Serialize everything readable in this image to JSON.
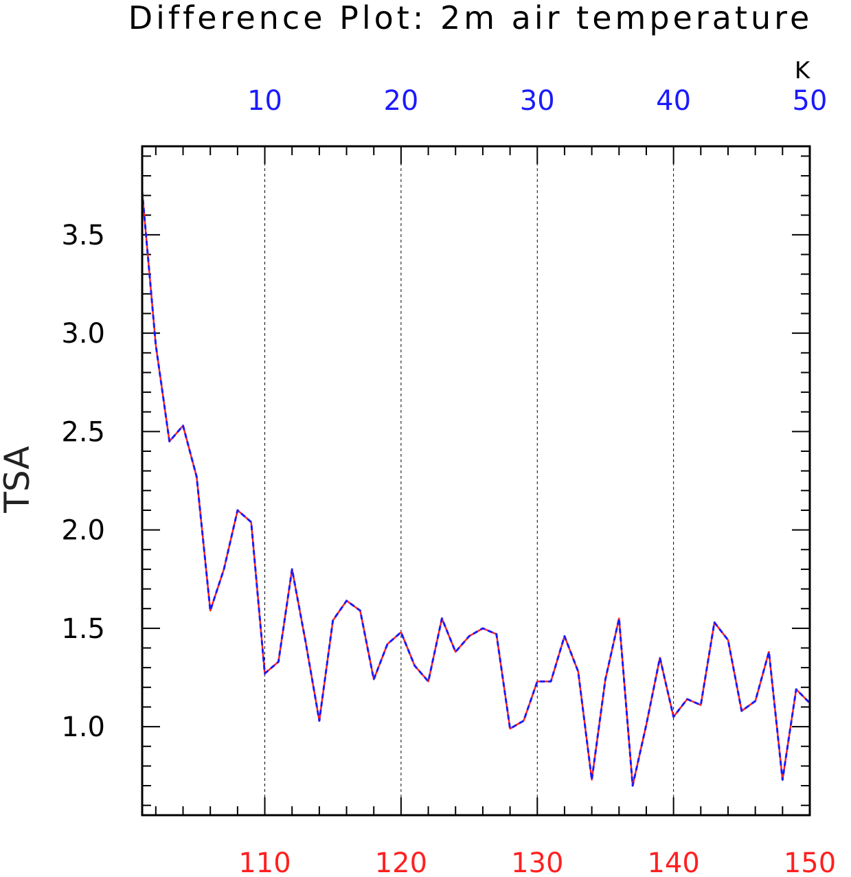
{
  "chart_data": {
    "type": "line",
    "title": "Difference Plot: 2m air temperature",
    "ylabel": "TSA",
    "units": "K",
    "ylim": [
      0.55,
      3.95
    ],
    "yticks": [
      "1.0",
      "1.5",
      "2.0",
      "2.5",
      "3.0",
      "3.5"
    ],
    "x_bottom": {
      "range": [
        101,
        150
      ],
      "ticks": [
        "110",
        "120",
        "130",
        "140",
        "150"
      ],
      "color": "#ff2020"
    },
    "x_top": {
      "range": [
        1,
        50
      ],
      "ticks": [
        "10",
        "20",
        "30",
        "40",
        "50"
      ],
      "color": "#1a1aff"
    },
    "grid": "vertical-dashed",
    "series": [
      {
        "color": "#ff2020",
        "style": "solid",
        "values": [
          3.72,
          2.94,
          2.45,
          2.53,
          2.27,
          1.59,
          1.8,
          2.1,
          2.04,
          1.27,
          1.33,
          1.8,
          1.43,
          1.03,
          1.54,
          1.64,
          1.59,
          1.24,
          1.42,
          1.48,
          1.31,
          1.23,
          1.55,
          1.38,
          1.46,
          1.5,
          1.47,
          0.99,
          1.03,
          1.23,
          1.23,
          1.46,
          1.28,
          0.73,
          1.24,
          1.55,
          0.7,
          1.01,
          1.35,
          1.05,
          1.14,
          1.11,
          1.53,
          1.44,
          1.08,
          1.13,
          1.38,
          0.73,
          1.19,
          1.12
        ]
      },
      {
        "color": "#1a1aff",
        "style": "dashed",
        "values": [
          3.72,
          2.94,
          2.45,
          2.53,
          2.27,
          1.59,
          1.8,
          2.1,
          2.04,
          1.27,
          1.33,
          1.8,
          1.43,
          1.03,
          1.54,
          1.64,
          1.59,
          1.24,
          1.42,
          1.48,
          1.31,
          1.23,
          1.55,
          1.38,
          1.46,
          1.5,
          1.47,
          0.99,
          1.03,
          1.23,
          1.23,
          1.46,
          1.28,
          0.73,
          1.24,
          1.55,
          0.7,
          1.01,
          1.35,
          1.05,
          1.14,
          1.11,
          1.53,
          1.44,
          1.08,
          1.13,
          1.38,
          0.73,
          1.19,
          1.12
        ]
      }
    ]
  }
}
